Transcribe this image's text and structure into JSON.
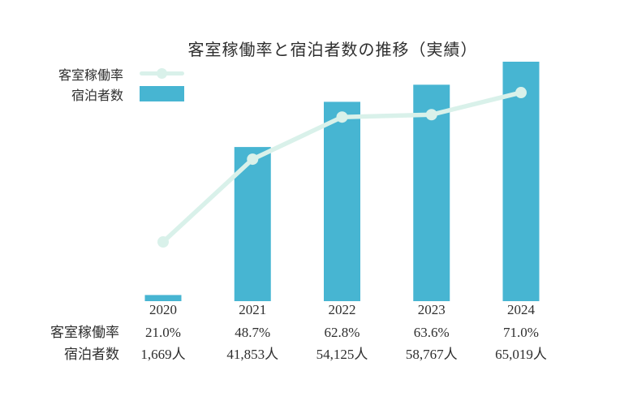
{
  "title": "客室稼働率と宿泊者数の推移（実績）",
  "legend": {
    "occupancy_label": "客室稼働率",
    "guests_label": "宿泊者数"
  },
  "table": {
    "occupancy_row_label": "客室稼働率",
    "guests_row_label": "宿泊者数"
  },
  "colors": {
    "bar": "#47b5d2",
    "line": "#d9f1ea",
    "text": "#2e2e2e"
  },
  "chart_data": {
    "type": "bar",
    "subtype": "combo-bar-line",
    "title": "客室稼働率と宿泊者数の推移（実績）",
    "categories": [
      "2020",
      "2021",
      "2022",
      "2023",
      "2024"
    ],
    "series": [
      {
        "name": "客室稼働率",
        "type": "line",
        "unit": "%",
        "values": [
          21.0,
          48.7,
          62.8,
          63.6,
          71.0
        ],
        "display": [
          "21.0%",
          "48.7%",
          "62.8%",
          "63.6%",
          "71.0%"
        ]
      },
      {
        "name": "宿泊者数",
        "type": "bar",
        "unit": "人",
        "values": [
          1669,
          41853,
          54125,
          58767,
          65019
        ],
        "display": [
          "1,669人",
          "41,853人",
          "54,125人",
          "58,767人",
          "65,019人"
        ]
      }
    ],
    "layout": {
      "legend_position": "top-left",
      "grid": false,
      "axes_hidden": true,
      "value_table_below": true
    }
  }
}
